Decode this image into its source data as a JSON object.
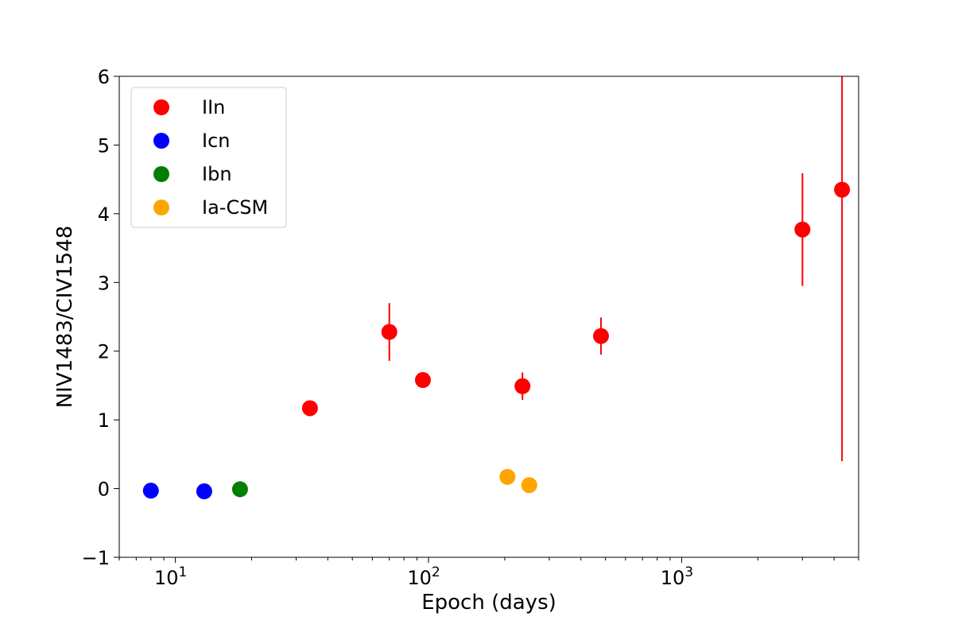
{
  "chart_data": {
    "type": "scatter",
    "title": "",
    "xlabel": "Epoch (days)",
    "ylabel": "NIV1483/CIV1548",
    "xscale": "log",
    "xlim": [
      6,
      5000
    ],
    "ylim": [
      -1,
      6
    ],
    "yticks": [
      -1,
      0,
      1,
      2,
      3,
      4,
      5,
      6
    ],
    "ytick_labels": [
      "−1",
      "0",
      "1",
      "2",
      "3",
      "4",
      "5",
      "6"
    ],
    "xticks": [
      {
        "value": 10,
        "base": "10",
        "exp": "1"
      },
      {
        "value": 100,
        "base": "10",
        "exp": "2"
      },
      {
        "value": 1000,
        "base": "10",
        "exp": "3"
      }
    ],
    "grid": false,
    "legend_placement": "top-left",
    "series": [
      {
        "name": "IIn",
        "color": "#ff0000",
        "points": [
          {
            "x": 34,
            "y": 1.17,
            "yerr": 0
          },
          {
            "x": 70,
            "y": 2.28,
            "yerr": 0.42
          },
          {
            "x": 95,
            "y": 1.58,
            "yerr": 0
          },
          {
            "x": 235,
            "y": 1.49,
            "yerr": 0.2
          },
          {
            "x": 480,
            "y": 2.22,
            "yerr": 0.27
          },
          {
            "x": 3000,
            "y": 3.77,
            "yerr": 0.82
          },
          {
            "x": 4300,
            "y": 4.35,
            "yerr": 3.95
          }
        ]
      },
      {
        "name": "Icn",
        "color": "#0000ff",
        "points": [
          {
            "x": 8,
            "y": -0.03,
            "yerr": 0
          },
          {
            "x": 13,
            "y": -0.04,
            "yerr": 0
          }
        ]
      },
      {
        "name": "Ibn",
        "color": "#007f00",
        "points": [
          {
            "x": 18,
            "y": -0.01,
            "yerr": 0
          }
        ]
      },
      {
        "name": "Ia-CSM",
        "color": "#ffa500",
        "points": [
          {
            "x": 205,
            "y": 0.17,
            "yerr": 0
          },
          {
            "x": 250,
            "y": 0.05,
            "yerr": 0
          }
        ]
      }
    ]
  }
}
